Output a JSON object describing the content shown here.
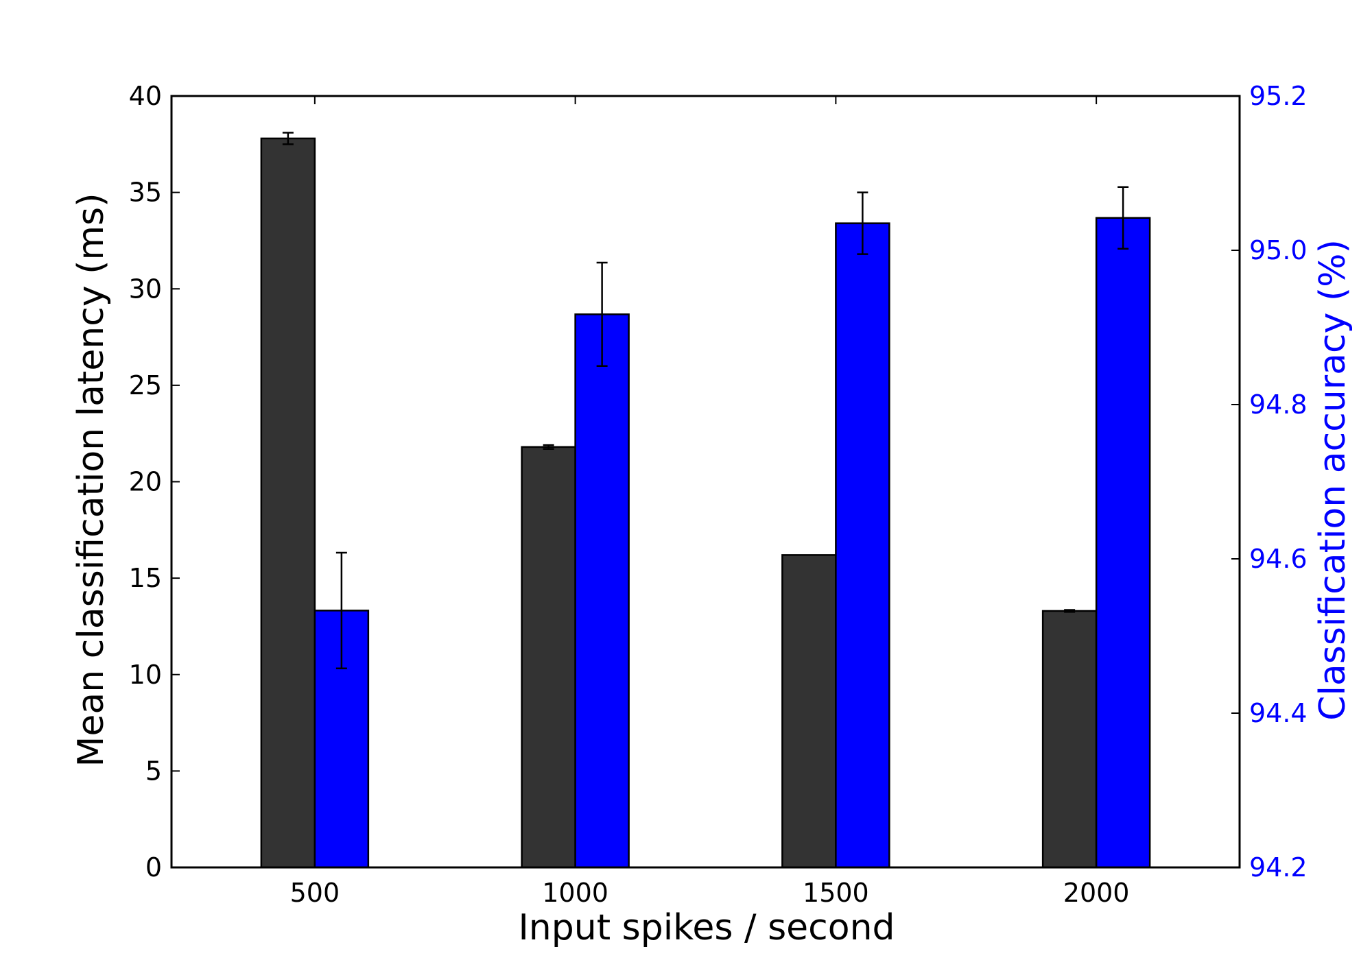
{
  "chart_data": {
    "type": "bar",
    "title": "",
    "xlabel": "Input spikes / second",
    "ylabel": "Mean classification latency (ms)",
    "y2label": "Classification accuracy (%)",
    "categories": [
      "500",
      "1000",
      "1500",
      "2000"
    ],
    "ylim": [
      0,
      40
    ],
    "y2lim": [
      94.2,
      95.2
    ],
    "yticks": [
      "0",
      "5",
      "10",
      "15",
      "20",
      "25",
      "30",
      "35",
      "40"
    ],
    "y2ticks": [
      "94.2",
      "94.4",
      "94.6",
      "94.8",
      "95.0",
      "95.2"
    ],
    "grid": false,
    "series": [
      {
        "name": "Mean classification latency",
        "axis": "left",
        "color": "#333333",
        "values": [
          37.8,
          21.8,
          16.2,
          13.3
        ],
        "errors": [
          0.3,
          0.1,
          0.0,
          0.05
        ]
      },
      {
        "name": "Classification accuracy",
        "axis": "right",
        "color": "#0000ff",
        "values": [
          94.533,
          94.917,
          95.035,
          95.042
        ],
        "errors": [
          0.075,
          0.067,
          0.04,
          0.04
        ]
      }
    ],
    "colors": {
      "left_axis": "#000000",
      "right_axis": "#0000ff"
    }
  }
}
